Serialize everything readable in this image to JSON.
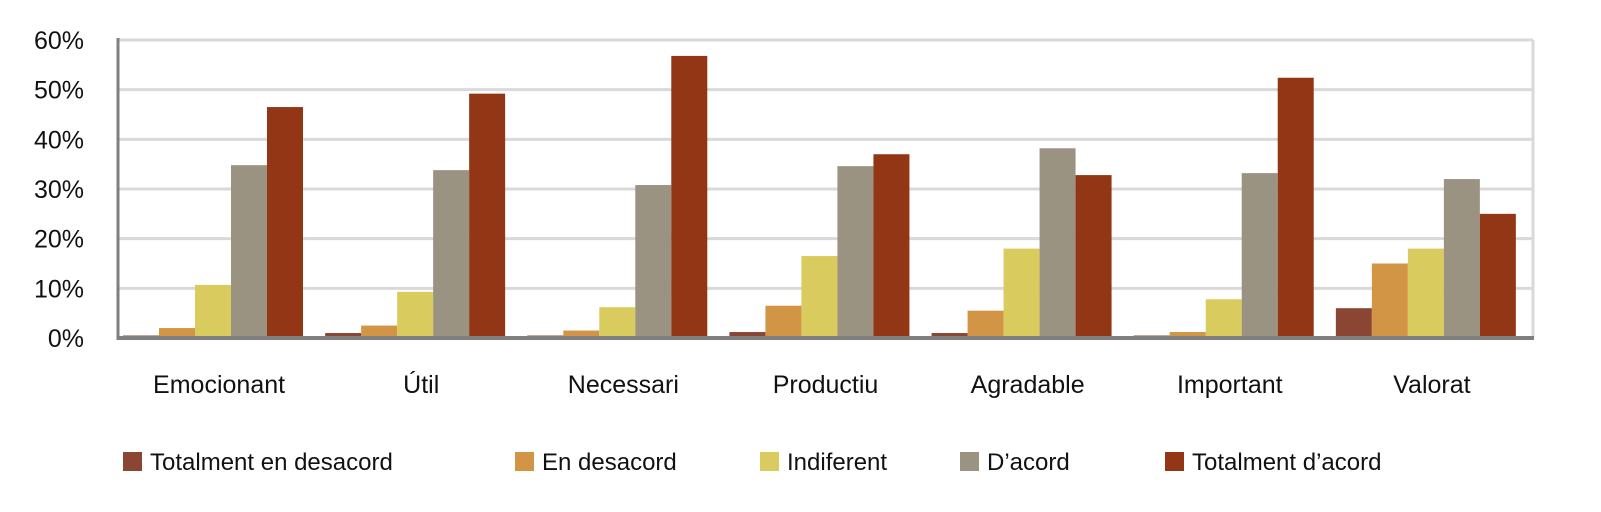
{
  "chart_data": {
    "type": "bar",
    "title": "",
    "xlabel": "",
    "ylabel": "",
    "ylim": [
      0,
      60
    ],
    "y_ticks": [
      "0%",
      "10%",
      "20%",
      "30%",
      "40%",
      "50%",
      "60%"
    ],
    "y_tick_values": [
      0,
      10,
      20,
      30,
      40,
      50,
      60
    ],
    "grid": true,
    "legend_position": "bottom",
    "categories": [
      "Emocionant",
      "Útil",
      "Necessari",
      "Productiu",
      "Agradable",
      "Important",
      "Valorat"
    ],
    "series": [
      {
        "name": "Totalment en desacord",
        "color": "#8B4533",
        "values": [
          0.5,
          1.0,
          0.5,
          1.2,
          1.0,
          0.5,
          6.0
        ]
      },
      {
        "name": "En desacord",
        "color": "#D29545",
        "values": [
          2.0,
          2.5,
          1.5,
          6.5,
          5.5,
          1.2,
          15.0
        ]
      },
      {
        "name": "Indiferent",
        "color": "#D9CB5E",
        "values": [
          10.7,
          9.3,
          6.2,
          16.5,
          18.0,
          7.8,
          18.0
        ]
      },
      {
        "name": "D’acord",
        "color": "#9A9381",
        "values": [
          34.8,
          33.8,
          30.8,
          34.6,
          38.2,
          33.2,
          32.0
        ]
      },
      {
        "name": "Totalment d’acord",
        "color": "#933616",
        "values": [
          46.5,
          49.2,
          56.8,
          37.0,
          32.8,
          52.4,
          25.0
        ]
      }
    ]
  }
}
